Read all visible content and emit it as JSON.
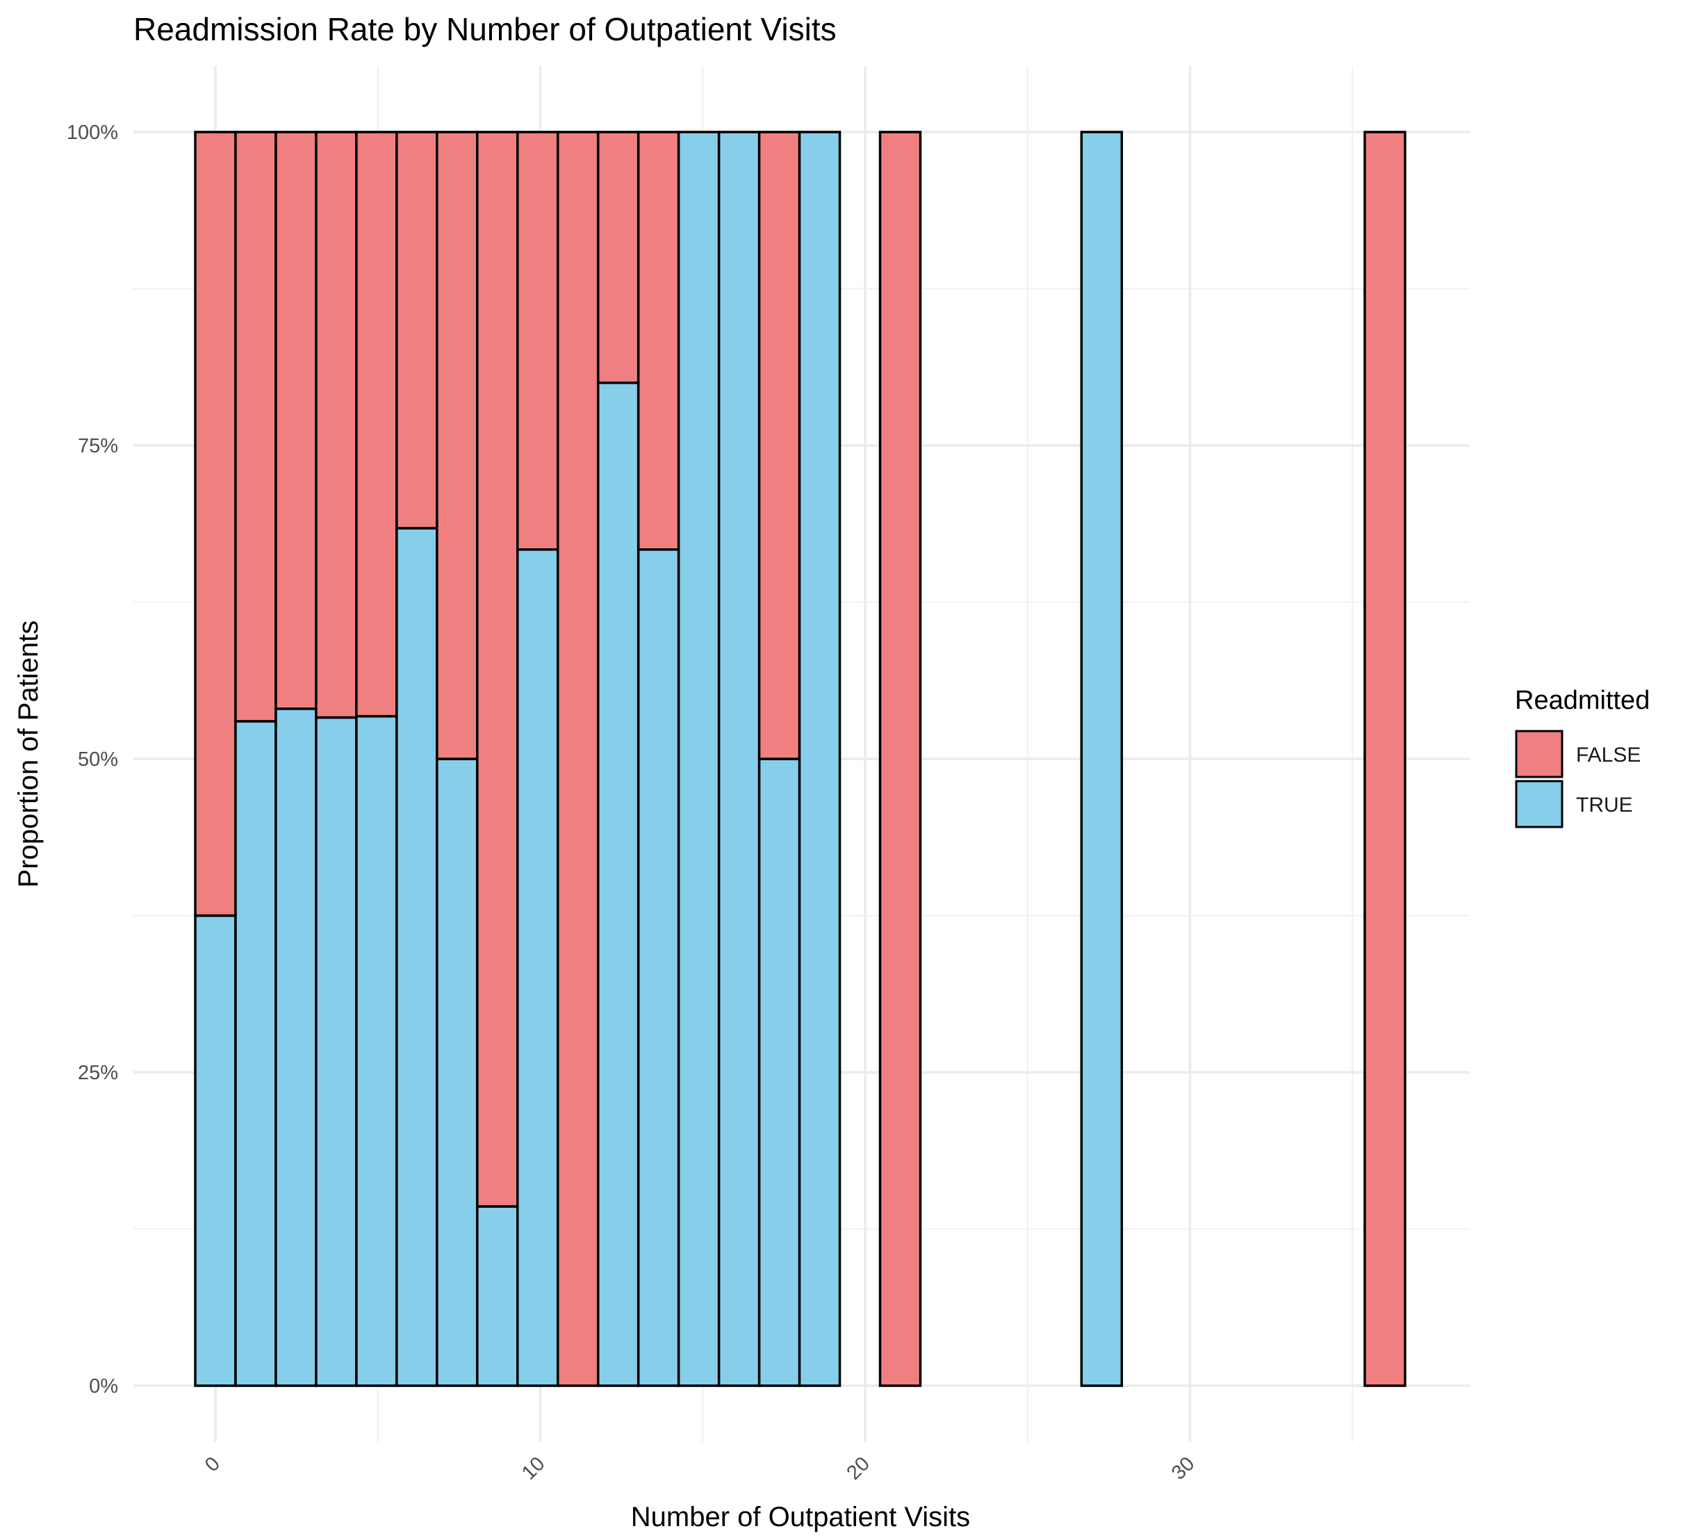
{
  "chart_data": {
    "type": "bar",
    "stacked": true,
    "position": "fill",
    "title": "Readmission Rate by Number of Outpatient Visits",
    "xlabel": "Number of Outpatient Visits",
    "ylabel": "Proportion of Patients",
    "xlim": [
      -1.5,
      38
    ],
    "ylim": [
      0,
      1
    ],
    "x_ticks": [
      0,
      10,
      20,
      30
    ],
    "y_ticks": [
      0,
      0.25,
      0.5,
      0.75,
      1.0
    ],
    "y_tick_labels": [
      "0%",
      "25%",
      "50%",
      "75%",
      "100%"
    ],
    "grid": true,
    "legend": {
      "title": "Readmitted",
      "position": "right",
      "items": [
        {
          "label": "FALSE",
          "color": "#F08080"
        },
        {
          "label": "TRUE",
          "color": "#87CEEB"
        }
      ]
    },
    "bin_width": 1.24,
    "x": [
      0,
      1.24,
      2.48,
      3.72,
      4.96,
      6.2,
      7.44,
      8.68,
      9.92,
      11.16,
      12.4,
      13.64,
      14.88,
      16.12,
      17.36,
      18.6,
      21.08,
      27.28,
      36.0
    ],
    "series": [
      {
        "name": "TRUE",
        "color": "#87CEEB",
        "values": [
          0.375,
          0.53,
          0.54,
          0.533,
          0.534,
          0.684,
          0.5,
          0.143,
          0.667,
          0.0,
          0.8,
          0.667,
          1.0,
          1.0,
          0.5,
          1.0,
          0.0,
          1.0,
          0.0
        ]
      },
      {
        "name": "FALSE",
        "color": "#F08080",
        "values": [
          0.625,
          0.47,
          0.46,
          0.467,
          0.466,
          0.316,
          0.5,
          0.857,
          0.333,
          1.0,
          0.2,
          0.333,
          0.0,
          0.0,
          0.5,
          0.0,
          1.0,
          0.0,
          1.0
        ]
      }
    ]
  }
}
